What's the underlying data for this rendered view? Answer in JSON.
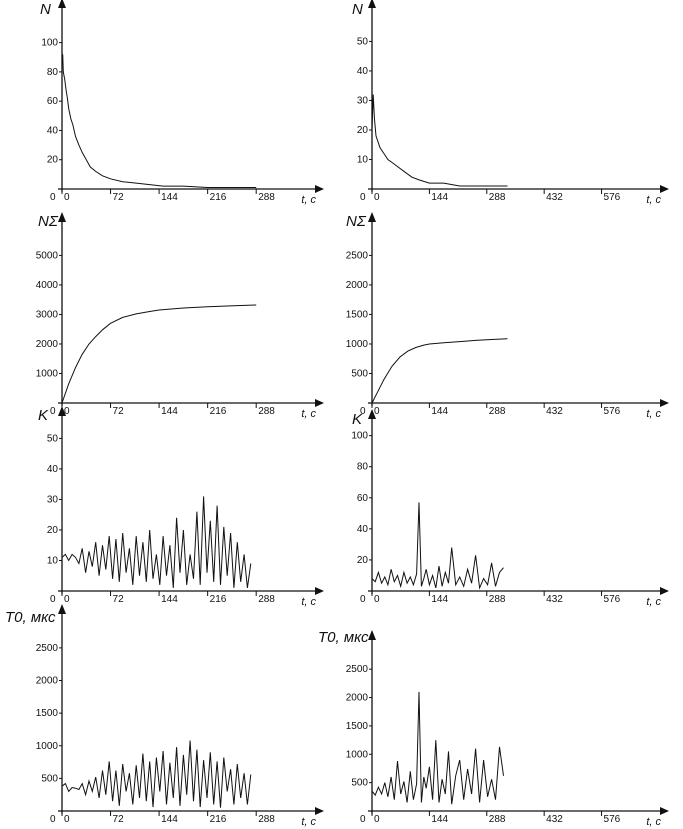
{
  "chart_data": [
    {
      "id": "p1",
      "type": "line",
      "ylabel": "N",
      "xlabel": "t, с",
      "xticks": [
        0,
        72,
        144,
        216,
        288
      ],
      "yticks": [
        20,
        40,
        60,
        80,
        100
      ],
      "xlim": [
        -8,
        350
      ],
      "ylim": [
        0,
        125
      ],
      "series": [
        {
          "x": [
            0,
            1,
            2,
            4,
            6,
            8,
            10,
            13,
            16,
            20,
            25,
            30,
            36,
            42,
            50,
            60,
            72,
            90,
            110,
            130,
            150,
            180,
            216,
            250,
            288
          ],
          "y": [
            85,
            92,
            80,
            75,
            68,
            62,
            55,
            48,
            44,
            36,
            30,
            25,
            20,
            15,
            12,
            9,
            7,
            5,
            4,
            3,
            2,
            2,
            1,
            1,
            1
          ]
        }
      ]
    },
    {
      "id": "p2",
      "type": "line",
      "ylabel": "N",
      "xlabel": "t, с",
      "xticks": [
        0,
        144,
        288,
        432,
        576
      ],
      "yticks": [
        10,
        20,
        30,
        40,
        50
      ],
      "xlim": [
        -10,
        680
      ],
      "ylim": [
        0,
        62
      ],
      "series": [
        {
          "x": [
            0,
            3,
            6,
            10,
            15,
            20,
            30,
            40,
            50,
            60,
            80,
            100,
            120,
            144,
            180,
            220,
            260,
            300,
            340
          ],
          "y": [
            20,
            32,
            24,
            18,
            16,
            14,
            12,
            10,
            9,
            8,
            6,
            4,
            3,
            2,
            2,
            1,
            1,
            1,
            1
          ]
        }
      ]
    },
    {
      "id": "p3",
      "type": "line",
      "ylabel": "NΣ",
      "xlabel": "t, с",
      "xticks": [
        0,
        72,
        144,
        216,
        288
      ],
      "yticks": [
        1000,
        2000,
        3000,
        4000,
        5000
      ],
      "xlim": [
        -8,
        350
      ],
      "ylim": [
        0,
        6200
      ],
      "series": [
        {
          "x": [
            0,
            10,
            20,
            30,
            40,
            50,
            60,
            72,
            90,
            110,
            130,
            144,
            180,
            216,
            250,
            288
          ],
          "y": [
            0,
            650,
            1200,
            1650,
            2000,
            2250,
            2480,
            2700,
            2900,
            3020,
            3100,
            3150,
            3220,
            3260,
            3290,
            3320
          ]
        }
      ]
    },
    {
      "id": "p4",
      "type": "line",
      "ylabel": "NΣ",
      "xlabel": "t, с",
      "xticks": [
        0,
        144,
        288,
        432,
        576
      ],
      "yticks": [
        500,
        1000,
        1500,
        2000,
        2500
      ],
      "xlim": [
        -10,
        680
      ],
      "ylim": [
        0,
        3100
      ],
      "series": [
        {
          "x": [
            0,
            15,
            30,
            50,
            70,
            90,
            110,
            130,
            144,
            180,
            220,
            260,
            300,
            340
          ],
          "y": [
            0,
            200,
            400,
            620,
            780,
            880,
            940,
            980,
            1000,
            1020,
            1040,
            1060,
            1075,
            1090
          ]
        }
      ]
    },
    {
      "id": "p5",
      "type": "line",
      "ylabel": "K",
      "xlabel": "t, с",
      "xticks": [
        0,
        72,
        144,
        216,
        288
      ],
      "yticks": [
        10,
        20,
        30,
        40,
        50
      ],
      "xlim": [
        -8,
        350
      ],
      "ylim": [
        0,
        58
      ],
      "series": [
        {
          "x": [
            0,
            5,
            10,
            15,
            20,
            25,
            30,
            35,
            40,
            45,
            50,
            55,
            60,
            65,
            70,
            75,
            80,
            85,
            90,
            95,
            100,
            105,
            110,
            115,
            120,
            125,
            130,
            135,
            140,
            145,
            150,
            155,
            160,
            165,
            170,
            175,
            180,
            185,
            190,
            195,
            200,
            205,
            210,
            215,
            220,
            225,
            230,
            235,
            240,
            245,
            250,
            255,
            260,
            265,
            270,
            275,
            280
          ],
          "y": [
            11,
            12,
            10,
            12,
            11,
            9,
            14,
            6,
            13,
            8,
            16,
            5,
            15,
            7,
            18,
            4,
            17,
            3,
            19,
            6,
            14,
            2,
            18,
            5,
            16,
            3,
            20,
            4,
            12,
            2,
            18,
            5,
            15,
            1,
            24,
            6,
            20,
            2,
            12,
            4,
            26,
            2,
            31,
            6,
            23,
            3,
            28,
            2,
            21,
            5,
            19,
            1,
            16,
            3,
            12,
            1,
            9
          ]
        }
      ]
    },
    {
      "id": "p6",
      "type": "line",
      "ylabel": "K",
      "xlabel": "t, с",
      "xticks": [
        0,
        144,
        288,
        432,
        576
      ],
      "yticks": [
        20,
        40,
        60,
        80,
        100
      ],
      "xlim": [
        -10,
        680
      ],
      "ylim": [
        0,
        112
      ],
      "series": [
        {
          "x": [
            0,
            8,
            16,
            24,
            32,
            40,
            48,
            56,
            64,
            72,
            80,
            88,
            96,
            104,
            112,
            118,
            124,
            130,
            136,
            144,
            152,
            160,
            168,
            176,
            184,
            192,
            200,
            210,
            220,
            230,
            240,
            250,
            260,
            270,
            280,
            290,
            300,
            310,
            320,
            330
          ],
          "y": [
            8,
            6,
            12,
            5,
            9,
            4,
            14,
            6,
            10,
            3,
            12,
            5,
            9,
            4,
            11,
            57,
            3,
            8,
            14,
            4,
            10,
            2,
            16,
            3,
            12,
            5,
            28,
            4,
            9,
            3,
            14,
            5,
            23,
            2,
            8,
            4,
            18,
            3,
            12,
            15
          ]
        }
      ]
    },
    {
      "id": "p7",
      "type": "line",
      "ylabel": "T0, мкс",
      "xlabel": "t, с",
      "xticks": [
        0,
        72,
        144,
        216,
        288
      ],
      "yticks": [
        500,
        1000,
        1500,
        2000,
        2500
      ],
      "xlim": [
        -8,
        350
      ],
      "ylim": [
        0,
        3050
      ],
      "series": [
        {
          "x": [
            0,
            5,
            10,
            15,
            20,
            25,
            30,
            35,
            40,
            45,
            50,
            55,
            60,
            65,
            70,
            75,
            80,
            85,
            90,
            95,
            100,
            105,
            110,
            115,
            120,
            125,
            130,
            135,
            140,
            145,
            150,
            155,
            160,
            165,
            170,
            175,
            180,
            185,
            190,
            195,
            200,
            205,
            210,
            215,
            220,
            225,
            230,
            235,
            240,
            245,
            250,
            255,
            260,
            265,
            270,
            275,
            280
          ],
          "y": [
            380,
            420,
            300,
            360,
            350,
            330,
            420,
            250,
            460,
            300,
            520,
            200,
            620,
            250,
            760,
            150,
            620,
            80,
            720,
            300,
            580,
            100,
            700,
            200,
            880,
            150,
            760,
            60,
            820,
            300,
            920,
            100,
            740,
            200,
            980,
            80,
            860,
            250,
            1080,
            150,
            940,
            60,
            780,
            200,
            900,
            100,
            760,
            50,
            820,
            300,
            640,
            100,
            720,
            200,
            580,
            100,
            560
          ]
        }
      ]
    },
    {
      "id": "p8",
      "type": "line",
      "ylabel": "T0, мкс",
      "xlabel": "t, с",
      "xticks": [
        0,
        144,
        288,
        432,
        576
      ],
      "yticks": [
        500,
        1000,
        1500,
        2000,
        2500
      ],
      "xlim": [
        -10,
        680
      ],
      "ylim": [
        0,
        3050
      ],
      "series": [
        {
          "x": [
            0,
            8,
            16,
            24,
            32,
            40,
            48,
            56,
            64,
            72,
            80,
            88,
            96,
            104,
            112,
            118,
            124,
            130,
            136,
            144,
            152,
            160,
            168,
            176,
            184,
            192,
            200,
            210,
            220,
            230,
            240,
            250,
            260,
            270,
            280,
            290,
            300,
            310,
            320,
            330
          ],
          "y": [
            350,
            280,
            420,
            300,
            500,
            250,
            600,
            200,
            880,
            300,
            520,
            150,
            700,
            200,
            480,
            2100,
            150,
            600,
            400,
            780,
            200,
            1250,
            150,
            560,
            300,
            1050,
            120,
            620,
            900,
            200,
            740,
            300,
            1100,
            150,
            900,
            250,
            560,
            200,
            1130,
            620
          ]
        }
      ]
    }
  ]
}
